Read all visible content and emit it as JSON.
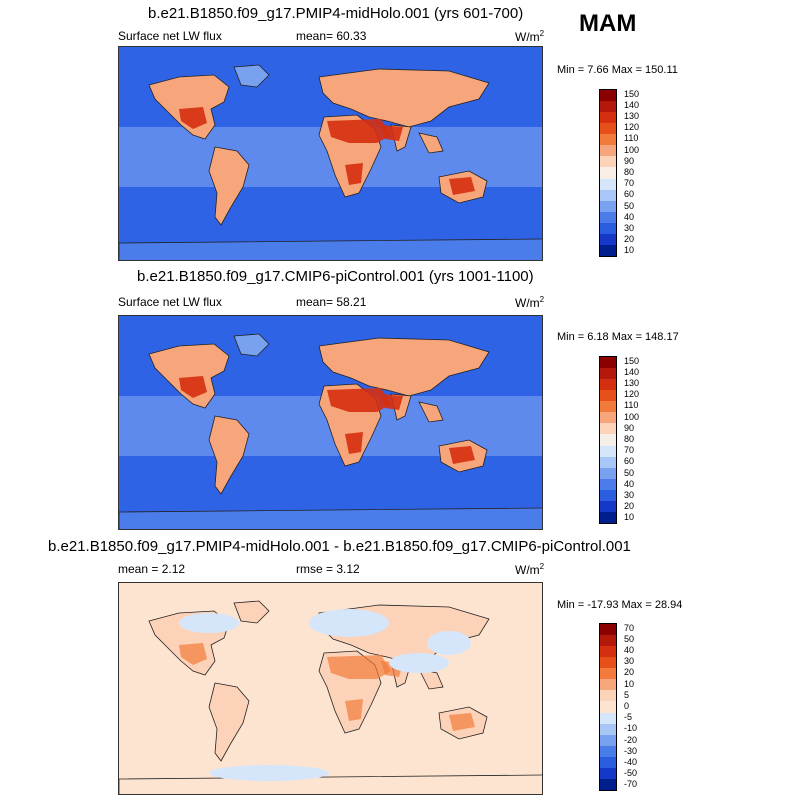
{
  "season": "MAM",
  "panels": [
    {
      "title": "b.e21.B1850.f09_g17.PMIP4-midHolo.001 (yrs 601-700)",
      "left_label": "Surface net LW flux",
      "mid_label": "mean=  60.33",
      "units": "W/m",
      "units_sup": "2",
      "minmax": "Min =   7.66 Max = 150.11",
      "levels": [
        "150",
        "140",
        "130",
        "120",
        "110",
        "100",
        "90",
        "80",
        "70",
        "60",
        "50",
        "40",
        "30",
        "20",
        "10"
      ],
      "ocean_color": "#2f63e6",
      "colors": [
        "#8b0000",
        "#b3180a",
        "#d42f0f",
        "#e8501a",
        "#f27a3b",
        "#f7a57a",
        "#fcd2b8",
        "#f8eee8",
        "#d6e6fa",
        "#a8c6f6",
        "#78a2f0",
        "#4a7cea",
        "#2a5ee0",
        "#1538c8",
        "#001f8f"
      ]
    },
    {
      "title": "b.e21.B1850.f09_g17.CMIP6-piControl.001 (yrs 1001-1100)",
      "left_label": "Surface net LW flux",
      "mid_label": "mean=  58.21",
      "units": "W/m",
      "units_sup": "2",
      "minmax": "Min =   6.18 Max = 148.17",
      "levels": [
        "150",
        "140",
        "130",
        "120",
        "110",
        "100",
        "90",
        "80",
        "70",
        "60",
        "50",
        "40",
        "30",
        "20",
        "10"
      ],
      "ocean_color": "#2f63e6",
      "colors": [
        "#8b0000",
        "#b3180a",
        "#d42f0f",
        "#e8501a",
        "#f27a3b",
        "#f7a57a",
        "#fcd2b8",
        "#f8eee8",
        "#d6e6fa",
        "#a8c6f6",
        "#78a2f0",
        "#4a7cea",
        "#2a5ee0",
        "#1538c8",
        "#001f8f"
      ]
    },
    {
      "title": "b.e21.B1850.f09_g17.PMIP4-midHolo.001 - b.e21.B1850.f09_g17.CMIP6-piControl.001",
      "left_label": "mean =   2.12",
      "mid_label": "rmse =   3.12",
      "units": "W/m",
      "units_sup": "2",
      "minmax": "Min = -17.93 Max =  28.94",
      "levels": [
        "70",
        "50",
        "40",
        "30",
        "20",
        "10",
        "5",
        "0",
        "-5",
        "-10",
        "-20",
        "-30",
        "-40",
        "-50",
        "-70"
      ],
      "ocean_color": "#fde4d0",
      "colors": [
        "#8b0000",
        "#b3180a",
        "#d42f0f",
        "#e8501a",
        "#f27a3b",
        "#f7a57a",
        "#fcd2b8",
        "#fde4d0",
        "#d6e6fa",
        "#a8c6f6",
        "#78a2f0",
        "#4a7cea",
        "#2a5ee0",
        "#1538c8",
        "#001f8f"
      ]
    }
  ]
}
